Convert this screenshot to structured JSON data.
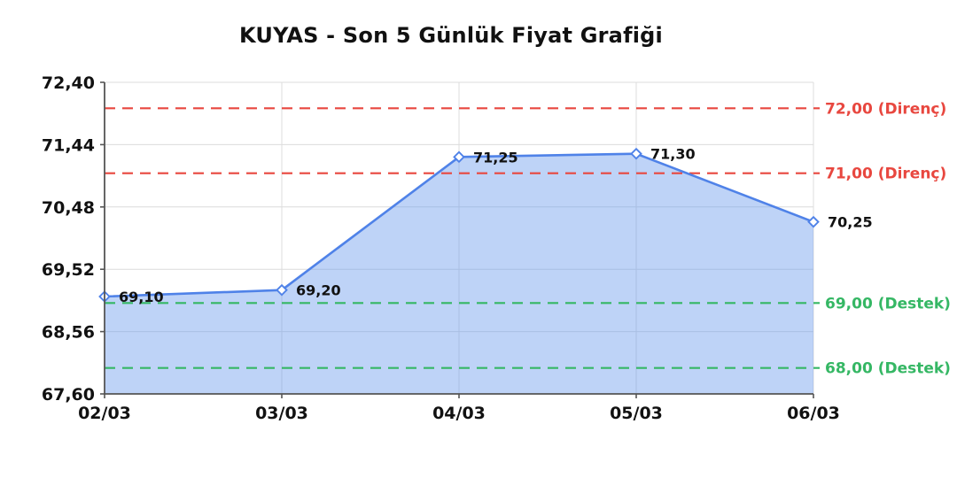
{
  "colors": {
    "line": "#4f82e8",
    "fill": "rgba(100,149,237,0.42)",
    "marker_fill": "#ffffff",
    "resistance": "#e8473f",
    "support": "#35b764",
    "grid": "#dcdcdc",
    "axis": "#555555",
    "text": "#111111"
  },
  "chart_data": {
    "type": "area",
    "title": "KUYAS - Son 5 Günlük Fiyat Grafiği",
    "categories": [
      "02/03",
      "03/03",
      "04/03",
      "05/03",
      "06/03"
    ],
    "values": [
      69.1,
      69.2,
      71.25,
      71.3,
      70.25
    ],
    "point_labels": [
      "69,10",
      "69,20",
      "71,25",
      "71,30",
      "70,25"
    ],
    "ylim": [
      67.6,
      72.4
    ],
    "y_ticks": [
      72.4,
      71.44,
      70.48,
      69.52,
      68.56,
      67.6
    ],
    "y_tick_labels": [
      "72,40",
      "71,44",
      "70,48",
      "69,52",
      "68,56",
      "67,60"
    ],
    "grid": true,
    "legend": "none",
    "levels": [
      {
        "value": 72.0,
        "label": "72,00 (Direnç)",
        "kind": "resistance"
      },
      {
        "value": 71.0,
        "label": "71,00 (Direnç)",
        "kind": "resistance"
      },
      {
        "value": 69.0,
        "label": "69,00 (Destek)",
        "kind": "support"
      },
      {
        "value": 68.0,
        "label": "68,00 (Destek)",
        "kind": "support"
      }
    ]
  }
}
